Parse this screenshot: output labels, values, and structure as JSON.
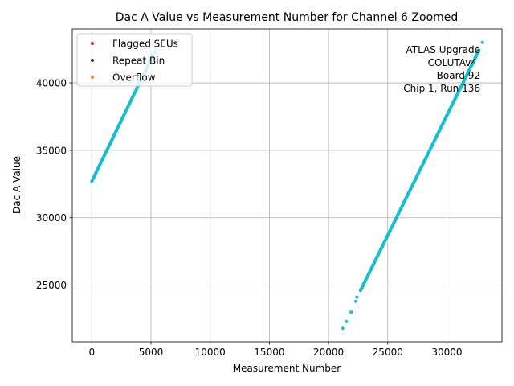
{
  "chart_data": {
    "type": "scatter",
    "title": "Dac A Value vs Measurement Number for Channel 6 Zoomed",
    "xlabel": "Measurement Number",
    "ylabel": "Dac A Value",
    "xlim": [
      -1650,
      34650
    ],
    "ylim": [
      20800,
      44000
    ],
    "xticks": [
      0,
      5000,
      10000,
      15000,
      20000,
      25000,
      30000
    ],
    "yticks": [
      25000,
      30000,
      35000,
      40000
    ],
    "grid": true,
    "legend_position": "top-left",
    "legend": [
      {
        "label": "Flagged SEUs",
        "color": "#d62728"
      },
      {
        "label": "Repeat Bin",
        "color": "#7b1450"
      },
      {
        "label": "Overflow",
        "color": "#ff7f0e"
      }
    ],
    "annotation": [
      "ATLAS Upgrade",
      "COLUTAv4",
      "Board 92",
      "Chip 1, Run 136"
    ],
    "series": [
      {
        "color": "#17becf",
        "segments": [
          {
            "x": [
              0,
              5300
            ],
            "y": [
              32700,
              42300
            ]
          },
          {
            "x": [
              22700,
              32700
            ],
            "y": [
              24600,
              42400
            ]
          }
        ],
        "points": [
          {
            "x": 21200,
            "y": 21800
          },
          {
            "x": 21500,
            "y": 22300
          },
          {
            "x": 21900,
            "y": 23000
          },
          {
            "x": 22300,
            "y": 23800
          },
          {
            "x": 22400,
            "y": 24100
          },
          {
            "x": 33000,
            "y": 43000
          }
        ]
      }
    ]
  }
}
